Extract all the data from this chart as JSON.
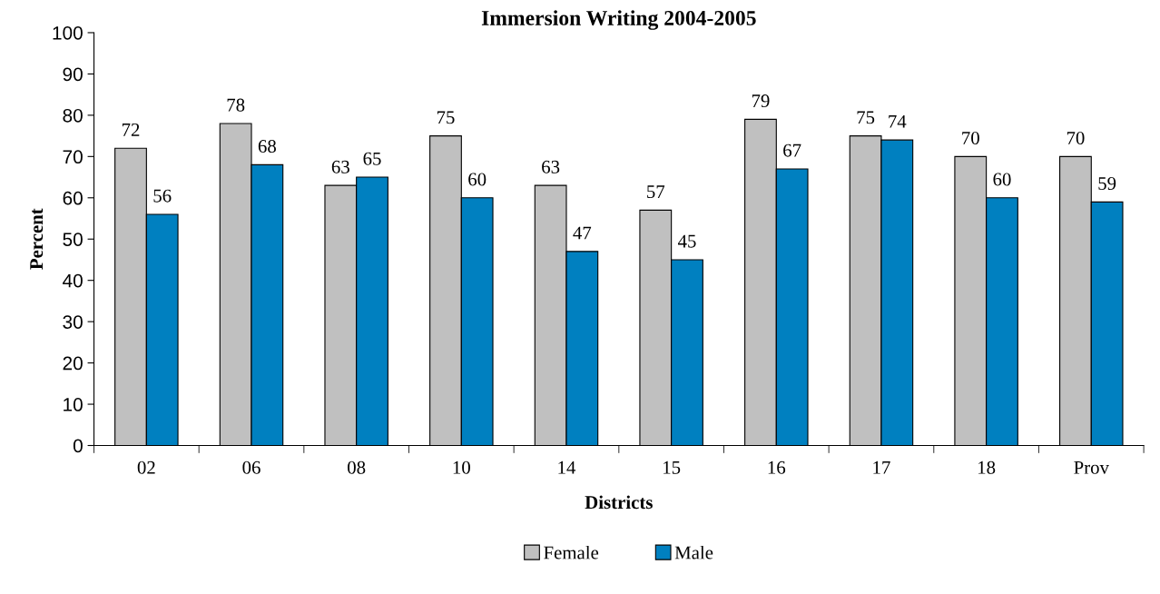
{
  "chart_data": {
    "type": "bar",
    "title": "Immersion Writing 2004-2005",
    "xlabel": "Districts",
    "ylabel": "Percent",
    "categories": [
      "02",
      "06",
      "08",
      "10",
      "14",
      "15",
      "16",
      "17",
      "18",
      "Prov"
    ],
    "series": [
      {
        "name": "Female",
        "color": "#c0c0c0",
        "values": [
          72,
          78,
          63,
          75,
          63,
          57,
          79,
          75,
          70,
          70
        ]
      },
      {
        "name": "Male",
        "color": "#0080c0",
        "values": [
          56,
          68,
          65,
          60,
          47,
          45,
          67,
          74,
          60,
          59
        ]
      }
    ],
    "ylim": [
      0,
      100
    ],
    "yticks": [
      0,
      10,
      20,
      30,
      40,
      50,
      60,
      70,
      80,
      90,
      100
    ],
    "grid": false,
    "legend": "bottom",
    "data_labels": true
  }
}
